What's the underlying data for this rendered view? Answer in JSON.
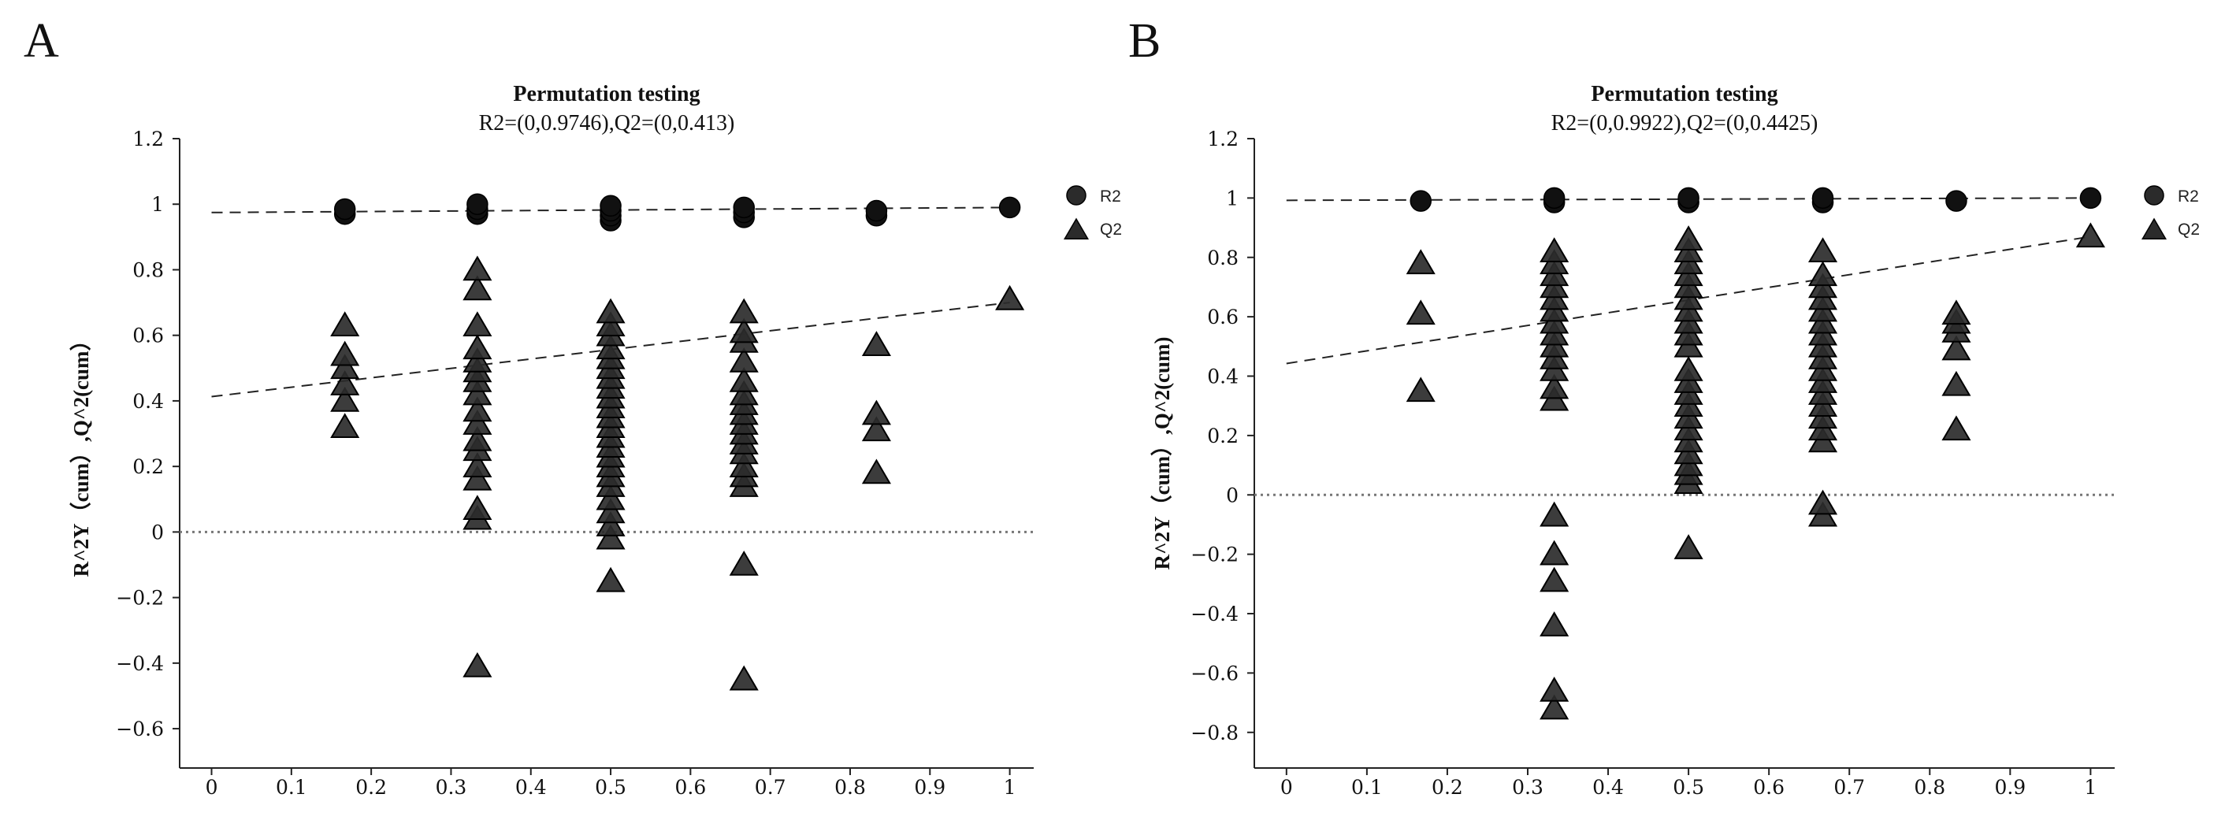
{
  "colors": {
    "marker": "#2b2b2b",
    "marker_stroke": "#000000",
    "axis": "#222222",
    "fit_line": "#222222",
    "zero_line": "#777777"
  },
  "chart_data": [
    {
      "panel": "A",
      "type": "scatter",
      "title": "Permutation testing",
      "subtitle": "R2=(0,0.9746),Q2=(0,0.413)",
      "xlabel": "",
      "ylabel": "R^2Y（cum）,Q^2(cum）",
      "xlim": [
        -0.04,
        1.03
      ],
      "ylim": [
        -0.72,
        1.2
      ],
      "xticks": [
        0,
        0.1,
        0.2,
        0.3,
        0.4,
        0.5,
        0.6,
        0.7,
        0.8,
        0.9,
        1
      ],
      "xtick_labels": [
        "0",
        "0.1",
        "0.2",
        "0.3",
        "0.4",
        "0.5",
        "0.6",
        "0.7",
        "0.8",
        "0.9",
        "1"
      ],
      "yticks": [
        -0.6,
        -0.4,
        -0.2,
        0,
        0.2,
        0.4,
        0.6,
        0.8,
        1,
        1.2
      ],
      "ytick_labels": [
        "−0.6",
        "−0.4",
        "−0.2",
        "0",
        "0.2",
        "0.4",
        "0.6",
        "0.8",
        "1",
        "1.2"
      ],
      "reference_line": 0,
      "legend": {
        "position": "right",
        "entries": [
          {
            "label": "R2",
            "marker": "circle"
          },
          {
            "label": "Q2",
            "marker": "triangle"
          }
        ]
      },
      "fit_lines": [
        {
          "name": "R2",
          "intercept": 0,
          "value_at_0": 0.9746,
          "value_at_1": 0.99
        },
        {
          "name": "Q2",
          "intercept": 0,
          "value_at_0": 0.413,
          "value_at_1": 0.7
        }
      ],
      "series": [
        {
          "name": "R2",
          "marker": "circle",
          "points": [
            [
              0.167,
              0.97
            ],
            [
              0.167,
              0.985
            ],
            [
              0.333,
              0.97
            ],
            [
              0.333,
              0.985
            ],
            [
              0.333,
              1.0
            ],
            [
              0.5,
              0.95
            ],
            [
              0.5,
              0.965
            ],
            [
              0.5,
              0.98
            ],
            [
              0.5,
              0.995
            ],
            [
              0.667,
              0.96
            ],
            [
              0.667,
              0.975
            ],
            [
              0.667,
              0.99
            ],
            [
              0.833,
              0.965
            ],
            [
              0.833,
              0.98
            ],
            [
              1.0,
              0.99
            ]
          ]
        },
        {
          "name": "Q2",
          "marker": "triangle",
          "points": [
            [
              0.167,
              0.32
            ],
            [
              0.167,
              0.4
            ],
            [
              0.167,
              0.45
            ],
            [
              0.167,
              0.5
            ],
            [
              0.167,
              0.54
            ],
            [
              0.167,
              0.63
            ],
            [
              0.333,
              -0.41
            ],
            [
              0.333,
              0.04
            ],
            [
              0.333,
              0.07
            ],
            [
              0.333,
              0.16
            ],
            [
              0.333,
              0.2
            ],
            [
              0.333,
              0.25
            ],
            [
              0.333,
              0.28
            ],
            [
              0.333,
              0.33
            ],
            [
              0.333,
              0.37
            ],
            [
              0.333,
              0.42
            ],
            [
              0.333,
              0.46
            ],
            [
              0.333,
              0.49
            ],
            [
              0.333,
              0.52
            ],
            [
              0.333,
              0.56
            ],
            [
              0.333,
              0.63
            ],
            [
              0.333,
              0.74
            ],
            [
              0.333,
              0.8
            ],
            [
              0.5,
              -0.15
            ],
            [
              0.5,
              -0.02
            ],
            [
              0.5,
              0.02
            ],
            [
              0.5,
              0.06
            ],
            [
              0.5,
              0.1
            ],
            [
              0.5,
              0.14
            ],
            [
              0.5,
              0.17
            ],
            [
              0.5,
              0.2
            ],
            [
              0.5,
              0.23
            ],
            [
              0.5,
              0.26
            ],
            [
              0.5,
              0.29
            ],
            [
              0.5,
              0.32
            ],
            [
              0.5,
              0.35
            ],
            [
              0.5,
              0.38
            ],
            [
              0.5,
              0.41
            ],
            [
              0.5,
              0.44
            ],
            [
              0.5,
              0.47
            ],
            [
              0.5,
              0.5
            ],
            [
              0.5,
              0.53
            ],
            [
              0.5,
              0.56
            ],
            [
              0.5,
              0.6
            ],
            [
              0.5,
              0.63
            ],
            [
              0.5,
              0.67
            ],
            [
              0.667,
              -0.45
            ],
            [
              0.667,
              -0.1
            ],
            [
              0.667,
              0.14
            ],
            [
              0.667,
              0.17
            ],
            [
              0.667,
              0.2
            ],
            [
              0.667,
              0.24
            ],
            [
              0.667,
              0.27
            ],
            [
              0.667,
              0.3
            ],
            [
              0.667,
              0.33
            ],
            [
              0.667,
              0.36
            ],
            [
              0.667,
              0.39
            ],
            [
              0.667,
              0.42
            ],
            [
              0.667,
              0.46
            ],
            [
              0.667,
              0.52
            ],
            [
              0.667,
              0.58
            ],
            [
              0.667,
              0.61
            ],
            [
              0.667,
              0.67
            ],
            [
              0.833,
              0.18
            ],
            [
              0.833,
              0.31
            ],
            [
              0.833,
              0.36
            ],
            [
              0.833,
              0.57
            ],
            [
              1.0,
              0.71
            ]
          ]
        }
      ]
    },
    {
      "panel": "B",
      "type": "scatter",
      "title": "Permutation testing",
      "subtitle": "R2=(0,0.9922),Q2=(0,0.4425)",
      "xlabel": "",
      "ylabel": "R^2Y（cum）,Q^2(cum)",
      "xlim": [
        -0.04,
        1.03
      ],
      "ylim": [
        -0.92,
        1.2
      ],
      "xticks": [
        0,
        0.1,
        0.2,
        0.3,
        0.4,
        0.5,
        0.6,
        0.7,
        0.8,
        0.9,
        1
      ],
      "xtick_labels": [
        "0",
        "0.1",
        "0.2",
        "0.3",
        "0.4",
        "0.5",
        "0.6",
        "0.7",
        "0.8",
        "0.9",
        "1"
      ],
      "yticks": [
        -0.8,
        -0.6,
        -0.4,
        -0.2,
        0,
        0.2,
        0.4,
        0.6,
        0.8,
        1,
        1.2
      ],
      "ytick_labels": [
        "−0.8",
        "−0.6",
        "−0.4",
        "−0.2",
        "0",
        "0.2",
        "0.4",
        "0.6",
        "0.8",
        "1",
        "1.2"
      ],
      "reference_line": 0,
      "legend": {
        "position": "right",
        "entries": [
          {
            "label": "R2",
            "marker": "circle"
          },
          {
            "label": "Q2",
            "marker": "triangle"
          }
        ]
      },
      "fit_lines": [
        {
          "name": "R2",
          "intercept": 0,
          "value_at_0": 0.9922,
          "value_at_1": 1.0
        },
        {
          "name": "Q2",
          "intercept": 0,
          "value_at_0": 0.4425,
          "value_at_1": 0.87
        }
      ],
      "series": [
        {
          "name": "R2",
          "marker": "circle",
          "points": [
            [
              0.167,
              0.99
            ],
            [
              0.333,
              0.985
            ],
            [
              0.333,
              1.0
            ],
            [
              0.5,
              0.985
            ],
            [
              0.5,
              1.0
            ],
            [
              0.667,
              0.985
            ],
            [
              0.667,
              1.0
            ],
            [
              0.833,
              0.99
            ],
            [
              1.0,
              1.0
            ]
          ]
        },
        {
          "name": "Q2",
          "marker": "triangle",
          "points": [
            [
              0.167,
              0.35
            ],
            [
              0.167,
              0.61
            ],
            [
              0.167,
              0.78
            ],
            [
              0.333,
              -0.72
            ],
            [
              0.333,
              -0.66
            ],
            [
              0.333,
              -0.44
            ],
            [
              0.333,
              -0.29
            ],
            [
              0.333,
              -0.2
            ],
            [
              0.333,
              -0.07
            ],
            [
              0.333,
              0.32
            ],
            [
              0.333,
              0.36
            ],
            [
              0.333,
              0.42
            ],
            [
              0.333,
              0.46
            ],
            [
              0.333,
              0.5
            ],
            [
              0.333,
              0.54
            ],
            [
              0.333,
              0.58
            ],
            [
              0.333,
              0.62
            ],
            [
              0.333,
              0.66
            ],
            [
              0.333,
              0.7
            ],
            [
              0.333,
              0.74
            ],
            [
              0.333,
              0.78
            ],
            [
              0.333,
              0.82
            ],
            [
              0.5,
              -0.18
            ],
            [
              0.5,
              0.04
            ],
            [
              0.5,
              0.07
            ],
            [
              0.5,
              0.1
            ],
            [
              0.5,
              0.14
            ],
            [
              0.5,
              0.18
            ],
            [
              0.5,
              0.22
            ],
            [
              0.5,
              0.26
            ],
            [
              0.5,
              0.3
            ],
            [
              0.5,
              0.34
            ],
            [
              0.5,
              0.38
            ],
            [
              0.5,
              0.42
            ],
            [
              0.5,
              0.5
            ],
            [
              0.5,
              0.54
            ],
            [
              0.5,
              0.58
            ],
            [
              0.5,
              0.62
            ],
            [
              0.5,
              0.66
            ],
            [
              0.5,
              0.7
            ],
            [
              0.5,
              0.74
            ],
            [
              0.5,
              0.78
            ],
            [
              0.5,
              0.82
            ],
            [
              0.5,
              0.86
            ],
            [
              0.667,
              -0.07
            ],
            [
              0.667,
              -0.03
            ],
            [
              0.667,
              0.18
            ],
            [
              0.667,
              0.22
            ],
            [
              0.667,
              0.26
            ],
            [
              0.667,
              0.3
            ],
            [
              0.667,
              0.34
            ],
            [
              0.667,
              0.38
            ],
            [
              0.667,
              0.42
            ],
            [
              0.667,
              0.46
            ],
            [
              0.667,
              0.5
            ],
            [
              0.667,
              0.54
            ],
            [
              0.667,
              0.58
            ],
            [
              0.667,
              0.62
            ],
            [
              0.667,
              0.66
            ],
            [
              0.667,
              0.7
            ],
            [
              0.667,
              0.74
            ],
            [
              0.667,
              0.82
            ],
            [
              0.833,
              0.22
            ],
            [
              0.833,
              0.37
            ],
            [
              0.833,
              0.49
            ],
            [
              0.833,
              0.55
            ],
            [
              0.833,
              0.58
            ],
            [
              0.833,
              0.61
            ],
            [
              1.0,
              0.87
            ]
          ]
        }
      ]
    }
  ]
}
